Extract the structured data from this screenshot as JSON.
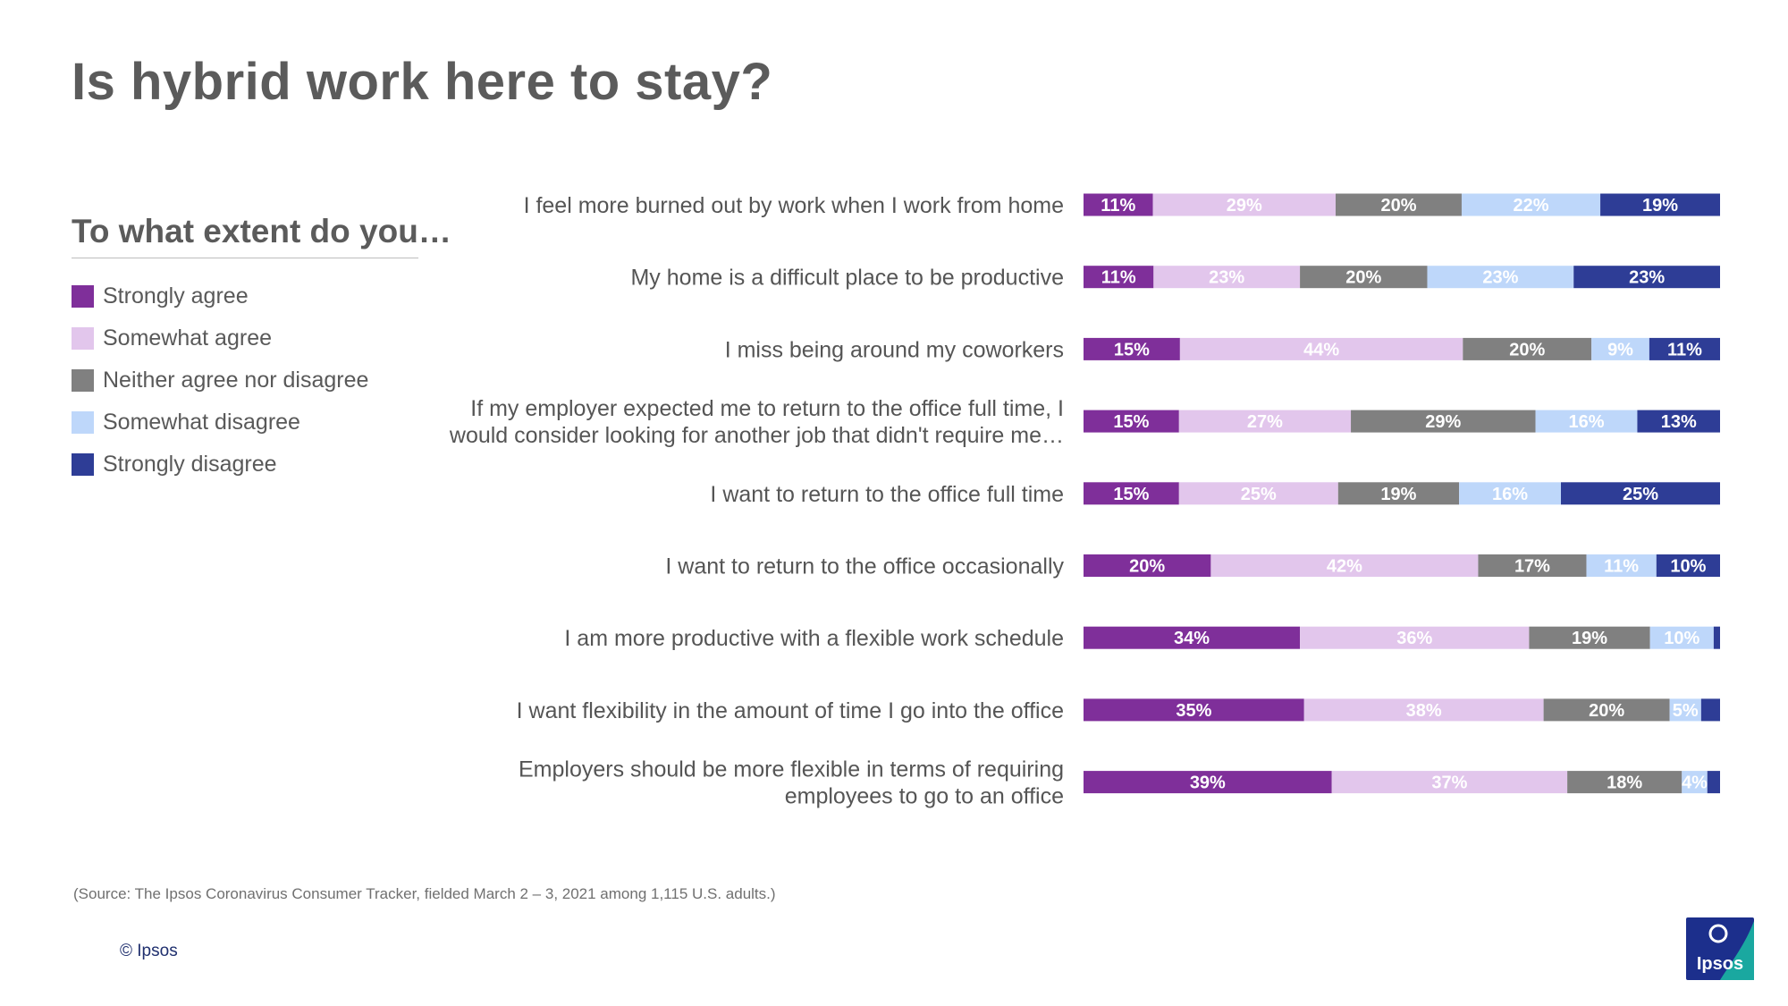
{
  "title": "Is hybrid work here to stay?",
  "question": "To what extent do you…",
  "source": "(Source: The Ipsos Coronavirus Consumer Tracker, fielded March 2 – 3, 2021 among 1,115 U.S. adults.)",
  "copyright": "© Ipsos",
  "logo_text": "Ipsos",
  "colors": {
    "strongly_agree": "#7f2f9a",
    "somewhat_agree": "#e2c6ec",
    "neither": "#808080",
    "somewhat_disagree": "#bed7fa",
    "strongly_disagree": "#2e3d96",
    "logo_blue": "#1c2f8c",
    "logo_teal": "#1aa8a0"
  },
  "chart_data": {
    "type": "bar",
    "orientation": "horizontal",
    "stacked": true,
    "legend_position": "left",
    "grid": false,
    "xlim": [
      0,
      100
    ],
    "categories": [
      "I feel more burned out by work when I work from home",
      "My home is a difficult place to be productive",
      "I miss being around my coworkers",
      "If my employer expected me to return to the office full time, I would consider looking for another job that didn't require me…",
      "I want to return to the office full time",
      "I want to return to the office occasionally",
      "I am more productive with a flexible work schedule",
      "I want flexibility in the amount of time I go into the office",
      "Employers should be more flexible in terms of requiring employees to go to an office"
    ],
    "category_lines": [
      [
        "I feel more burned out by work when I work from home"
      ],
      [
        "My home is a difficult place to be productive"
      ],
      [
        "I miss being around my coworkers"
      ],
      [
        "If my employer expected me to return to the office full time, I",
        "would consider looking for another job that didn't require me…"
      ],
      [
        "I want to return to the office full time"
      ],
      [
        "I want to return to the office occasionally"
      ],
      [
        "I am more productive with a flexible work schedule"
      ],
      [
        "I want flexibility in the amount of time I go into the office"
      ],
      [
        "Employers should be more flexible in terms of requiring",
        "employees to go to an office"
      ]
    ],
    "series": [
      {
        "name": "Strongly agree",
        "color": "#7f2f9a",
        "label_color": "#ffffff",
        "values": [
          11,
          11,
          15,
          15,
          15,
          20,
          34,
          35,
          39
        ]
      },
      {
        "name": "Somewhat agree",
        "color": "#e2c6ec",
        "label_color": "#ffffff",
        "values": [
          29,
          23,
          44,
          27,
          25,
          42,
          36,
          38,
          37
        ]
      },
      {
        "name": "Neither agree nor disagree",
        "color": "#808080",
        "label_color": "#ffffff",
        "values": [
          20,
          20,
          20,
          29,
          19,
          17,
          19,
          20,
          18
        ]
      },
      {
        "name": "Somewhat disagree",
        "color": "#bed7fa",
        "label_color": "#ffffff",
        "values": [
          22,
          23,
          9,
          16,
          16,
          11,
          10,
          5,
          4
        ]
      },
      {
        "name": "Strongly disagree",
        "color": "#2e3d96",
        "label_color": "#ffffff",
        "values": [
          19,
          23,
          11,
          13,
          25,
          10,
          1,
          3,
          2
        ]
      }
    ],
    "value_labels": [
      [
        "11%",
        "29%",
        "20%",
        "22%",
        "19%"
      ],
      [
        "11%",
        "23%",
        "20%",
        "23%",
        "23%"
      ],
      [
        "15%",
        "44%",
        "20%",
        "9%",
        "11%"
      ],
      [
        "15%",
        "27%",
        "29%",
        "16%",
        "13%"
      ],
      [
        "15%",
        "25%",
        "19%",
        "16%",
        "25%"
      ],
      [
        "20%",
        "42%",
        "17%",
        "11%",
        "10%"
      ],
      [
        "34%",
        "36%",
        "19%",
        "10%",
        ""
      ],
      [
        "35%",
        "38%",
        "20%",
        "5%",
        ""
      ],
      [
        "39%",
        "37%",
        "18%",
        "4%",
        ""
      ]
    ]
  }
}
